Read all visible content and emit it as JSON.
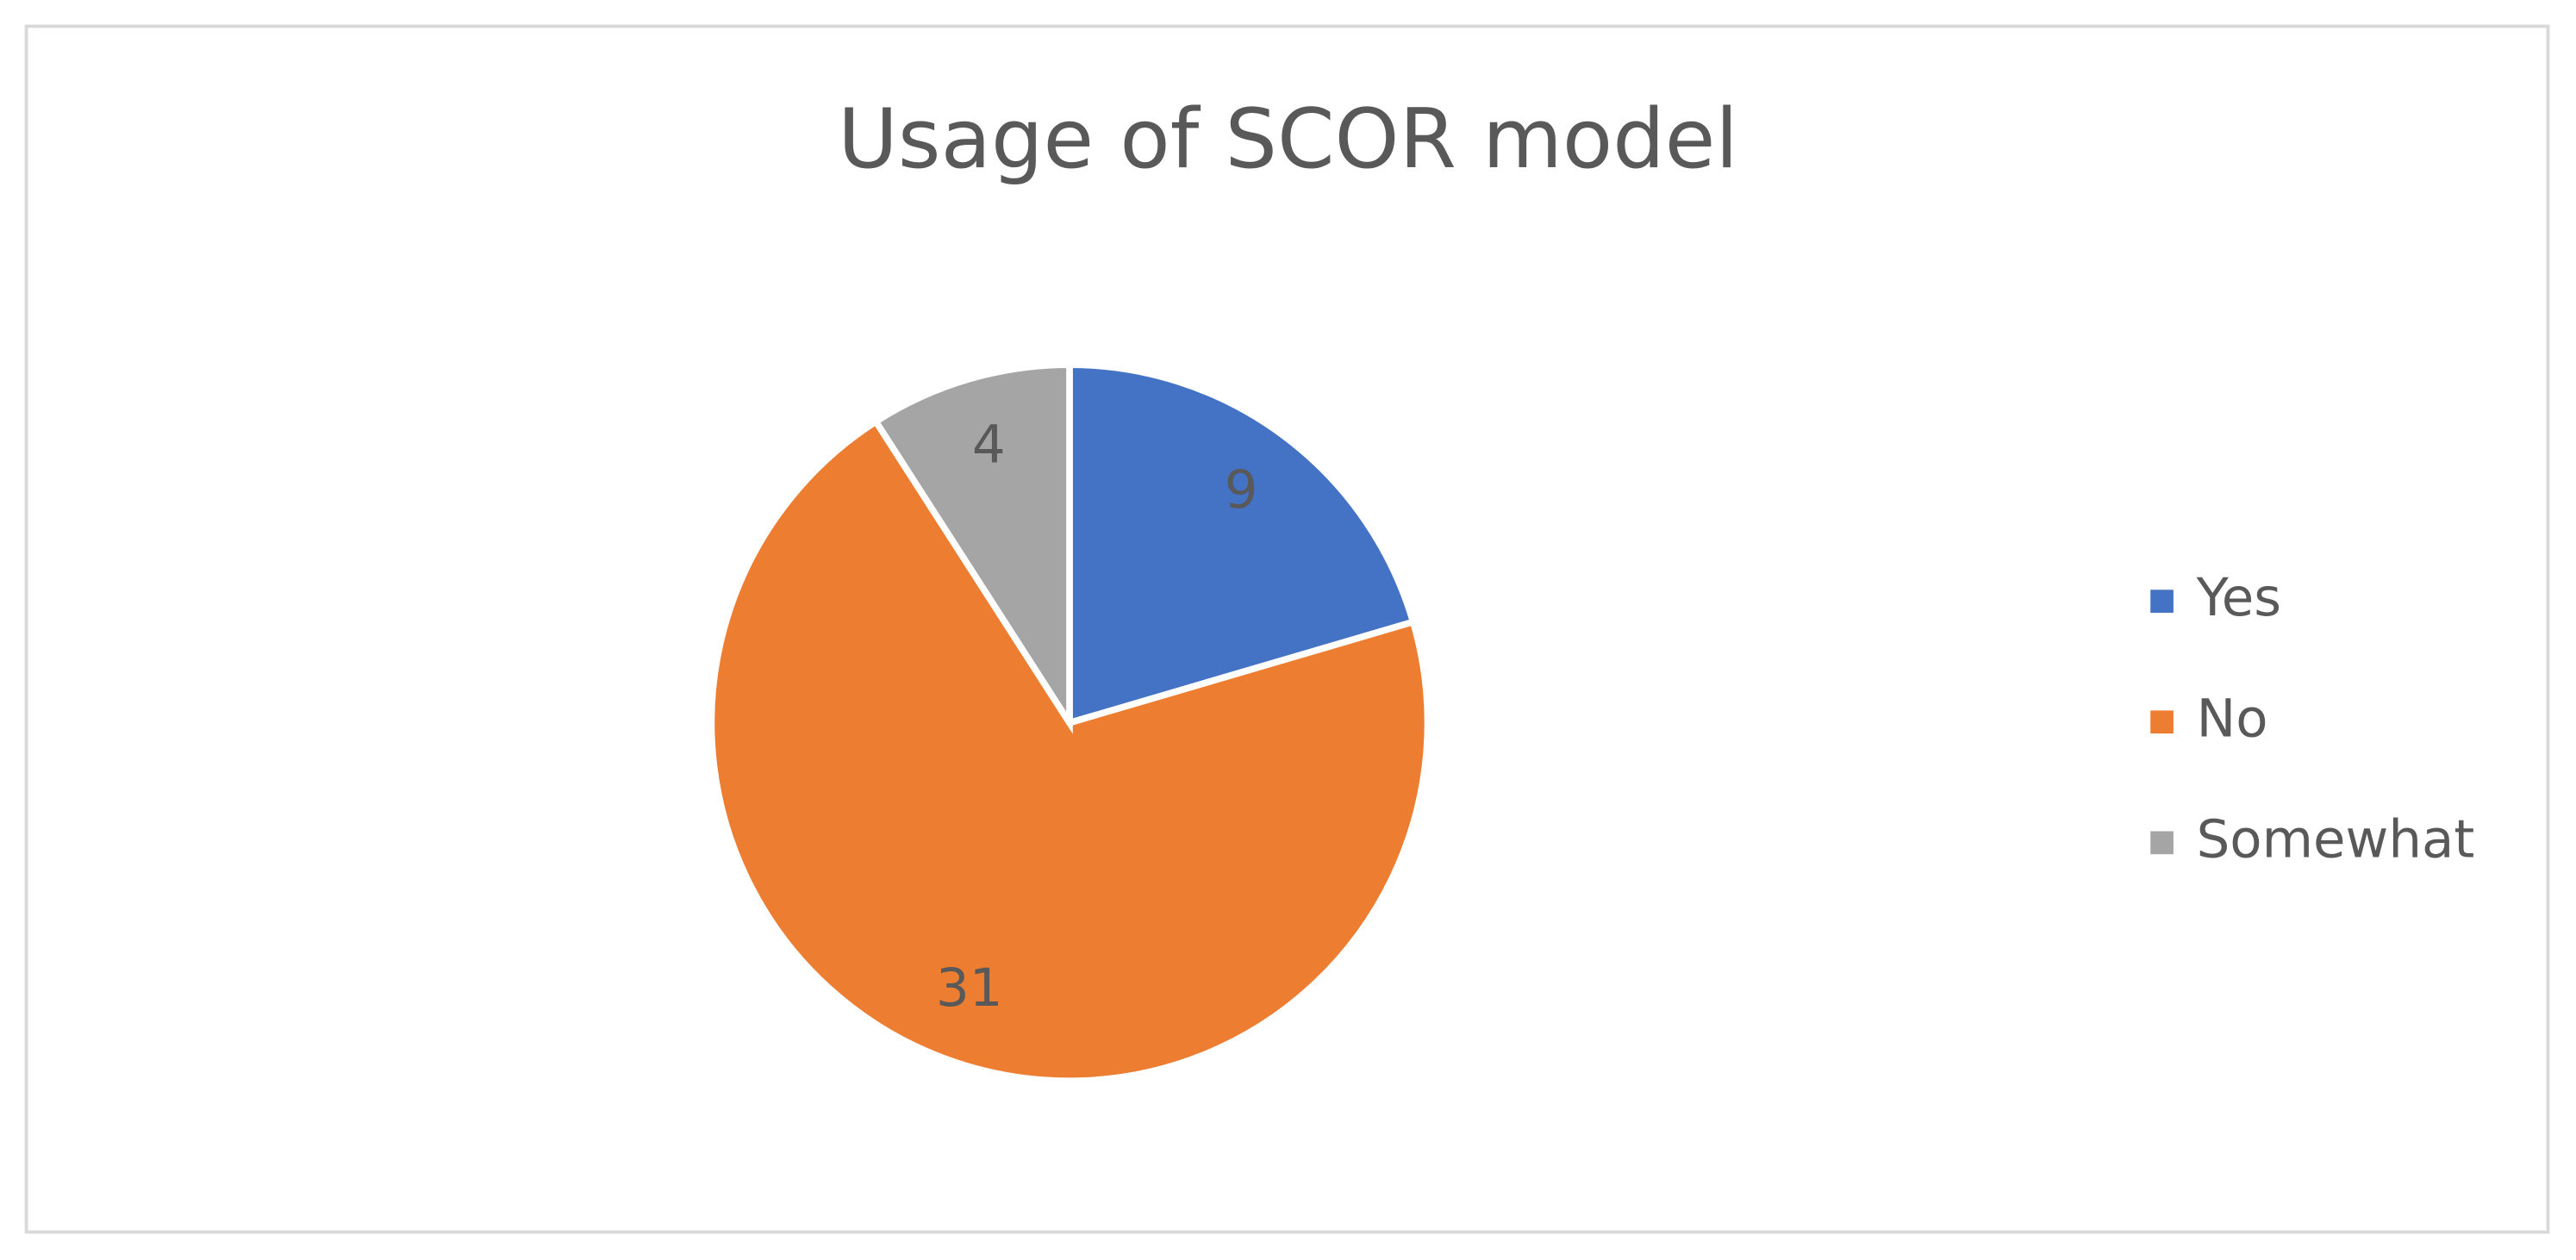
{
  "chart_data": {
    "type": "pie",
    "title": "Usage of SCOR model",
    "categories": [
      "Yes",
      "No",
      "Somewhat"
    ],
    "values": [
      9,
      31,
      4
    ],
    "colors": [
      "#4472c4",
      "#ed7d31",
      "#a5a5a5"
    ],
    "legend": "right"
  }
}
